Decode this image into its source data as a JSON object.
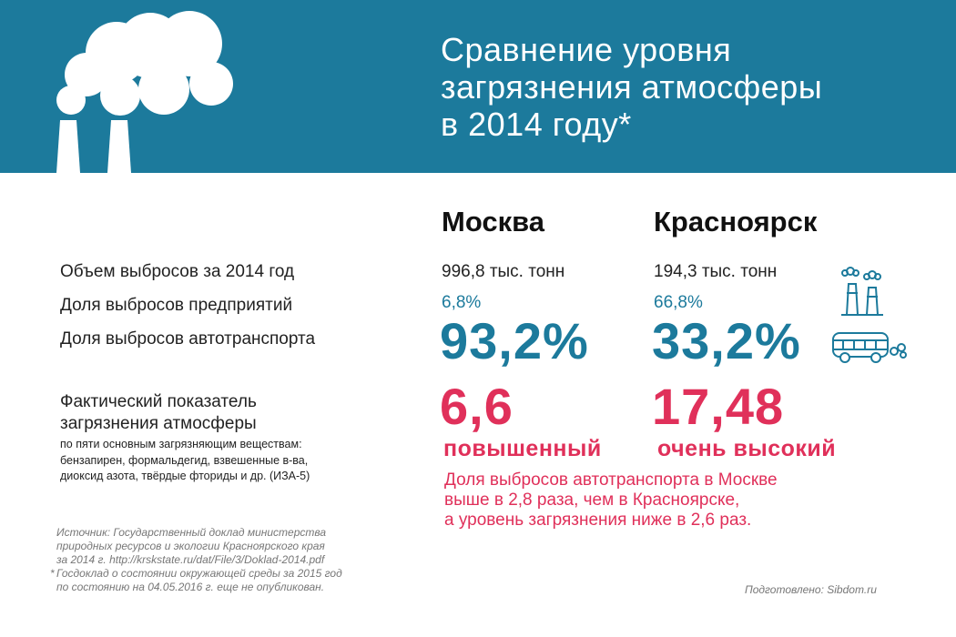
{
  "header": {
    "title_lines": [
      "Сравнение уровня",
      "загрязнения атмосферы",
      "в 2014 году*"
    ]
  },
  "cities": [
    {
      "name": "Москва",
      "emissions_total": "996,8 тыс. тонн",
      "industry_share": "6,8%",
      "transport_share": "93,2%",
      "pollution_index": "6,6",
      "pollution_level": "повышенный"
    },
    {
      "name": "Красноярск",
      "emissions_total": "194,3 тыс. тонн",
      "industry_share": "66,8%",
      "transport_share": "33,2%",
      "pollution_index": "17,48",
      "pollution_level": "очень высокий"
    }
  ],
  "rows": {
    "emissions_total": "Объем выбросов за 2014 год",
    "industry_share": "Доля выбросов предприятий",
    "transport_share": "Доля выбросов автотранспорта",
    "pollution_index_lines": [
      "Фактический показатель",
      "загрязнения атмосферы"
    ],
    "pollution_index_note_lines": [
      "по пяти основным загрязняющим веществам:",
      "бензапирен, формальдегид, взвешенные в-ва,",
      "диоксид азота, твёрдые фториды и др. (ИЗА-5)"
    ]
  },
  "conclusion_lines": [
    "Доля выбросов автотранспорта в Москве",
    "выше в 2,8 раза, чем в Красноярске,",
    "а уровень загрязнения ниже в 2,6 раз."
  ],
  "source_lines": [
    "Источник: Государственный доклад министерства",
    "природных ресурсов и экологии Красноярского края",
    "за 2014 г. http://krskstate.ru/dat/File/3/Doklad-2014.pdf",
    "Госдоклад о состоянии окружающей среды за 2015 год",
    "по состоянию на 04.05.2016 г. еще не опубликован."
  ],
  "credit": "Подготовлено: Sibdom.ru",
  "icons": [
    "factory-smoke-icon",
    "factory-icon",
    "bus-icon"
  ],
  "colors": {
    "banner": "#1c7a9c",
    "accent_blue": "#1c7a9c",
    "accent_red": "#e0305a"
  }
}
